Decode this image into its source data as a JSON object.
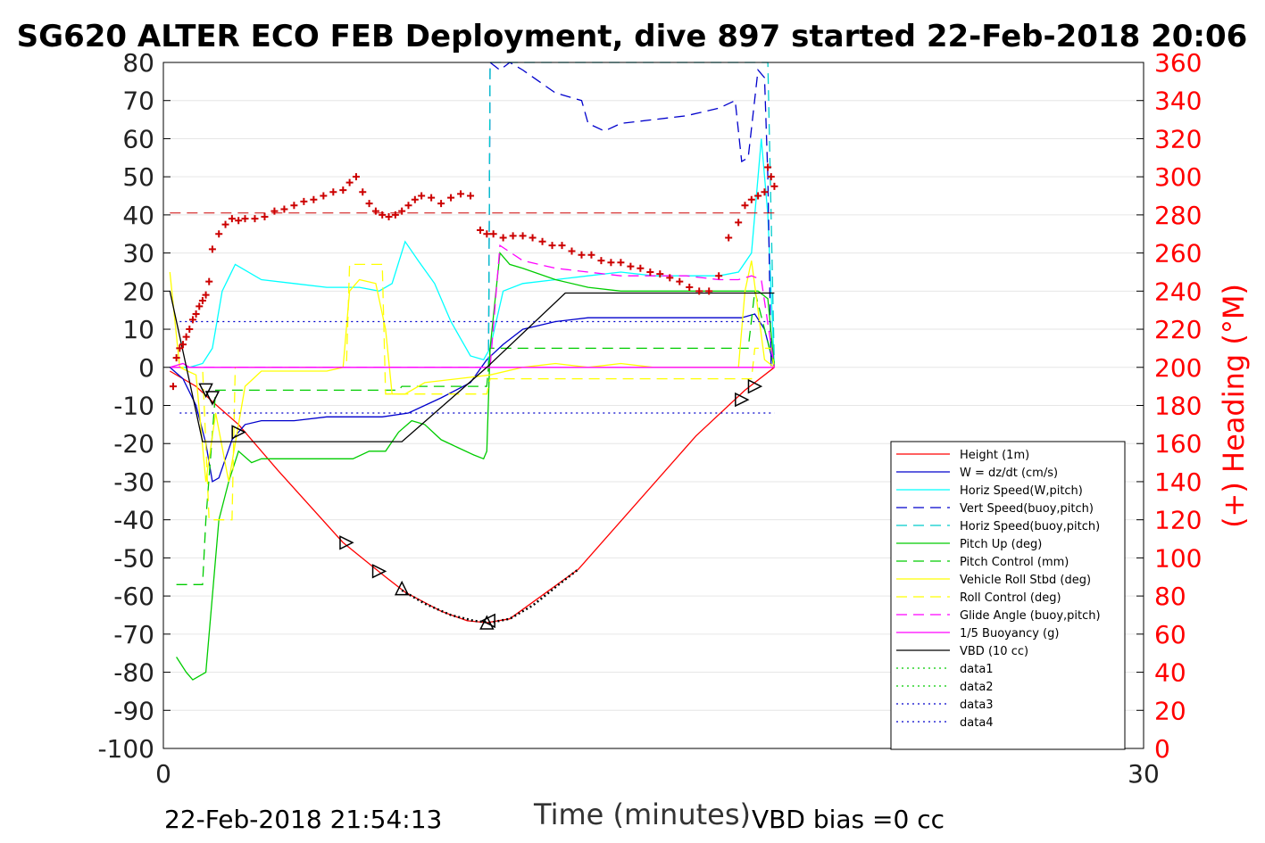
{
  "chart_data": {
    "type": "line",
    "title": "SG620 ALTER ECO FEB Deployment, dive 897 started 22-Feb-2018 20:06",
    "xlabel": "Time (minutes)",
    "ylabel_right": "(+) Heading (°M)",
    "footer_left": "22-Feb-2018 21:54:13",
    "footer_right": "VBD bias =0 cc",
    "xlim": [
      0,
      30
    ],
    "ylim_left": [
      -100,
      80
    ],
    "ylim_right": [
      0,
      360
    ],
    "x_ticks": [
      "0",
      "30"
    ],
    "y_ticks_left": [
      "80",
      "70",
      "60",
      "50",
      "40",
      "30",
      "20",
      "10",
      "0",
      "-10",
      "-20",
      "-30",
      "-40",
      "-50",
      "-60",
      "-70",
      "-80",
      "-90",
      "-100"
    ],
    "y_ticks_right": [
      "360",
      "340",
      "320",
      "300",
      "280",
      "260",
      "240",
      "220",
      "200",
      "180",
      "160",
      "140",
      "120",
      "100",
      "80",
      "60",
      "40",
      "20",
      "0"
    ],
    "legend_position": "lower-right",
    "series": [
      {
        "name": "Height (1m)",
        "color": "#ff0000",
        "style": "solid",
        "axis": "left",
        "x": [
          0.2,
          1.0,
          1.5,
          2.3,
          3.5,
          5.5,
          6.8,
          7.4,
          8.5,
          9.3,
          9.9,
          10.6,
          12.7,
          16.3,
          17.8,
          18.7
        ],
        "y": [
          -1,
          -5,
          -9,
          -15,
          -27,
          -46,
          -55,
          -59,
          -64,
          -66.5,
          -67,
          -66,
          -53,
          -18,
          -6,
          0
        ]
      },
      {
        "name": "W = dz/dt (cm/s)",
        "color": "#0000cc",
        "style": "solid",
        "axis": "left",
        "x": [
          0.2,
          0.6,
          1.0,
          1.3,
          1.5,
          1.7,
          1.9,
          2.1,
          2.5,
          3.0,
          4.0,
          5.0,
          6.0,
          6.7,
          7.5,
          8.5,
          9.4,
          9.9,
          10.4,
          11.0,
          12.0,
          13.0,
          14.0,
          15.0,
          16.0,
          17.0,
          17.7,
          18.1,
          18.4,
          18.7
        ],
        "y": [
          0,
          -3,
          -10,
          -20,
          -30,
          -29,
          -24,
          -19,
          -15,
          -14,
          -14,
          -13,
          -13,
          -13,
          -12,
          -8,
          -4,
          2,
          6,
          10,
          12,
          13,
          13,
          13,
          13,
          13,
          13,
          14,
          10,
          0
        ]
      },
      {
        "name": "Horiz Speed(W,pitch)",
        "color": "#00ffff",
        "style": "solid",
        "axis": "left",
        "x": [
          0.2,
          0.8,
          1.2,
          1.5,
          1.8,
          2.2,
          3.0,
          4.0,
          5.0,
          6.0,
          6.6,
          7.0,
          7.4,
          7.8,
          8.3,
          8.8,
          9.4,
          9.8,
          10.0,
          10.4,
          11.0,
          12.0,
          13.0,
          14.0,
          15.0,
          16.0,
          17.0,
          17.6,
          18.0,
          18.3,
          18.5,
          18.7
        ],
        "y": [
          0,
          0,
          1,
          5,
          20,
          27,
          23,
          22,
          21,
          21,
          20,
          22,
          33,
          28,
          22,
          12,
          3,
          2,
          5,
          20,
          22,
          23,
          24,
          25,
          24,
          24,
          24,
          25,
          30,
          60,
          40,
          0
        ]
      },
      {
        "name": "Vert Speed(buoy,pitch)",
        "color": "#0000cc",
        "style": "dashed",
        "axis": "left",
        "x": [
          9.95,
          10.0,
          10.3,
          10.6,
          11.0,
          12.0,
          12.8,
          13.0,
          13.5,
          14.0,
          15.0,
          16.0,
          17.0,
          17.5,
          17.7,
          17.9,
          18.2,
          18.4,
          18.5,
          18.6
        ],
        "y": [
          0,
          80,
          78,
          80,
          78,
          72,
          70,
          64,
          62,
          64,
          65,
          66,
          68,
          70,
          54,
          55,
          78,
          76,
          50,
          0
        ]
      },
      {
        "name": "Horiz Speed(buoy,pitch)",
        "color": "#00cccc",
        "style": "dashed",
        "axis": "left",
        "x": [
          9.95,
          10.0,
          10.2,
          18.3,
          18.5,
          18.7
        ],
        "y": [
          0,
          80,
          80,
          80,
          80,
          0
        ]
      },
      {
        "name": "Pitch Up (deg)",
        "color": "#00cc00",
        "style": "solid",
        "axis": "left",
        "x": [
          0.4,
          0.7,
          0.9,
          1.1,
          1.3,
          1.5,
          1.7,
          2.0,
          2.3,
          2.7,
          3.0,
          4.0,
          5.0,
          5.8,
          6.3,
          6.8,
          7.2,
          7.6,
          8.0,
          8.5,
          9.0,
          9.5,
          9.8,
          9.9,
          10.0,
          10.3,
          10.6,
          11.0,
          12.0,
          13.0,
          14.0,
          15.0,
          16.0,
          17.0,
          17.6,
          17.9,
          18.2,
          18.5,
          18.7
        ],
        "y": [
          -76,
          -80,
          -82,
          -81,
          -80,
          -60,
          -40,
          -30,
          -22,
          -25,
          -24,
          -24,
          -24,
          -24,
          -22,
          -22,
          -17,
          -14,
          -15,
          -19,
          -21,
          -23,
          -24,
          -22,
          5,
          30,
          27,
          26,
          23,
          21,
          20,
          20,
          20,
          20,
          20,
          20,
          20,
          18,
          0
        ]
      },
      {
        "name": "Pitch Control (mm)",
        "color": "#00cc00",
        "style": "dashed",
        "axis": "left",
        "x": [
          0.4,
          1.2,
          1.3,
          1.6,
          2.0,
          7.2,
          7.3,
          9.9,
          10.0,
          17.9,
          18.1,
          18.7
        ],
        "y": [
          -57,
          -57,
          -40,
          -6,
          -6,
          -6,
          -5,
          -5,
          5,
          5,
          20,
          0
        ]
      },
      {
        "name": "Vehicle Roll Stbd (deg)",
        "color": "#ffff00",
        "style": "solid",
        "axis": "left",
        "x": [
          0.2,
          0.5,
          1.0,
          1.3,
          1.6,
          2.0,
          2.5,
          3.0,
          4.0,
          5.0,
          5.5,
          5.7,
          6.0,
          6.5,
          6.8,
          7.0,
          7.4,
          8.0,
          9.0,
          10.0,
          11.0,
          12.0,
          13.0,
          14.0,
          15.0,
          16.0,
          17.0,
          17.6,
          17.8,
          18.0,
          18.4,
          18.7
        ],
        "y": [
          25,
          0,
          -2,
          -30,
          -12,
          -30,
          -5,
          -1,
          -1,
          -1,
          0,
          20,
          23,
          22,
          10,
          -7,
          -7,
          -4,
          -3,
          -2,
          0,
          1,
          0,
          1,
          0,
          0,
          0,
          0,
          20,
          28,
          2,
          0
        ]
      },
      {
        "name": "Roll Control (deg)",
        "color": "#ffff00",
        "style": "dashed",
        "axis": "left",
        "x": [
          0.3,
          1.2,
          1.4,
          2.1,
          2.2,
          5.6,
          5.7,
          6.7,
          6.8,
          9.9,
          10.0,
          18.0,
          18.1,
          18.6,
          18.7
        ],
        "y": [
          0,
          0,
          -40,
          -40,
          0,
          0,
          27,
          27,
          -7,
          -7,
          -3,
          -3,
          5,
          5,
          0
        ]
      },
      {
        "name": "Glide Angle (buoy,pitch)",
        "color": "#ff00ff",
        "style": "dashed",
        "axis": "left",
        "x": [
          0.2,
          9.9,
          10.0,
          10.3,
          11.0,
          12.0,
          13.0,
          14.0,
          15.0,
          16.0,
          17.0,
          17.6,
          18.0,
          18.3,
          18.7
        ],
        "y": [
          0,
          0,
          0,
          32,
          28,
          26,
          25,
          24,
          24,
          24,
          23,
          23,
          24,
          23,
          0
        ]
      },
      {
        "name": "1/5 Buoyancy (g)",
        "color": "#ff00ff",
        "style": "solid",
        "axis": "left",
        "x": [
          0.2,
          0.6,
          0.8,
          18.6,
          18.7
        ],
        "y": [
          0,
          1,
          0,
          0,
          0
        ]
      },
      {
        "name": "VBD (10 cc)",
        "color": "#000000",
        "style": "solid",
        "axis": "left",
        "x": [
          0.2,
          1.2,
          7.3,
          9.9,
          12.3,
          18.7
        ],
        "y": [
          20,
          -19.5,
          -19.5,
          0,
          19.5,
          19.5
        ]
      },
      {
        "name": "data1",
        "color": "#00cc00",
        "style": "dotted",
        "axis": "left",
        "x": [],
        "y": []
      },
      {
        "name": "data2",
        "color": "#00cc00",
        "style": "dotted",
        "axis": "left",
        "x": [],
        "y": []
      },
      {
        "name": "data3",
        "color": "#0000cc",
        "style": "dotted",
        "axis": "left",
        "x": [
          0.5,
          18.7
        ],
        "y": [
          12,
          12
        ]
      },
      {
        "name": "data4",
        "color": "#0000cc",
        "style": "dotted",
        "axis": "left",
        "x": [
          0.5,
          18.7
        ],
        "y": [
          -12,
          -12
        ]
      }
    ],
    "heading": {
      "color": "#cc0000",
      "axis": "right",
      "x": [
        0.3,
        0.4,
        0.5,
        0.6,
        0.7,
        0.8,
        0.9,
        1.0,
        1.1,
        1.2,
        1.3,
        1.4,
        1.5,
        1.7,
        1.9,
        2.1,
        2.3,
        2.5,
        2.8,
        3.1,
        3.4,
        3.7,
        4.0,
        4.3,
        4.6,
        4.9,
        5.2,
        5.5,
        5.7,
        5.9,
        6.1,
        6.3,
        6.5,
        6.7,
        6.9,
        7.1,
        7.3,
        7.5,
        7.7,
        7.9,
        8.2,
        8.5,
        8.8,
        9.1,
        9.4,
        9.7,
        9.9,
        10.1,
        10.4,
        10.7,
        11.0,
        11.3,
        11.6,
        11.9,
        12.2,
        12.5,
        12.8,
        13.1,
        13.4,
        13.7,
        14.0,
        14.3,
        14.6,
        14.9,
        15.2,
        15.5,
        15.8,
        16.1,
        16.4,
        16.7,
        17.0,
        17.3,
        17.6,
        17.8,
        18.0,
        18.2,
        18.4,
        18.5,
        18.6,
        18.7
      ],
      "y": [
        190,
        205,
        210,
        212,
        216,
        220,
        225,
        228,
        232,
        235,
        238,
        245,
        262,
        270,
        275,
        278,
        277,
        278,
        278,
        279,
        282,
        283,
        285,
        287,
        288,
        290,
        292,
        293,
        297,
        300,
        292,
        286,
        282,
        280,
        279,
        280,
        282,
        285,
        288,
        290,
        289,
        286,
        289,
        291,
        290,
        272,
        270,
        270,
        268,
        269,
        269,
        268,
        266,
        264,
        264,
        261,
        259,
        259,
        256,
        255,
        255,
        253,
        252,
        250,
        249,
        247,
        245,
        242,
        240,
        240,
        248,
        268,
        276,
        285,
        288,
        290,
        292,
        305,
        300,
        295
      ]
    },
    "heading_ref_line": {
      "color": "#cc0000",
      "style": "dashed",
      "axis": "right",
      "x": [
        0.2,
        18.7
      ],
      "y": [
        281,
        281
      ]
    },
    "triangle_markers": [
      {
        "x": 1.3,
        "y": -6,
        "dir": "down"
      },
      {
        "x": 1.5,
        "y": -8,
        "dir": "down"
      },
      {
        "x": 2.3,
        "y": -17,
        "dir": "right"
      },
      {
        "x": 5.6,
        "y": -46,
        "dir": "right"
      },
      {
        "x": 6.6,
        "y": -53.5,
        "dir": "right"
      },
      {
        "x": 7.3,
        "y": -58,
        "dir": "up"
      },
      {
        "x": 9.9,
        "y": -67,
        "dir": "up"
      },
      {
        "x": 9.95,
        "y": -66.5,
        "dir": "left"
      },
      {
        "x": 17.7,
        "y": -8.5,
        "dir": "right"
      },
      {
        "x": 18.1,
        "y": -5,
        "dir": "right"
      }
    ],
    "dotted_segment": {
      "x": [
        7.3,
        8.0,
        8.8,
        9.5,
        10.0,
        10.6,
        11.3,
        12.1,
        12.7
      ],
      "y": [
        -58.5,
        -62,
        -65,
        -66.5,
        -67,
        -66,
        -62.5,
        -57,
        -53
      ]
    }
  }
}
